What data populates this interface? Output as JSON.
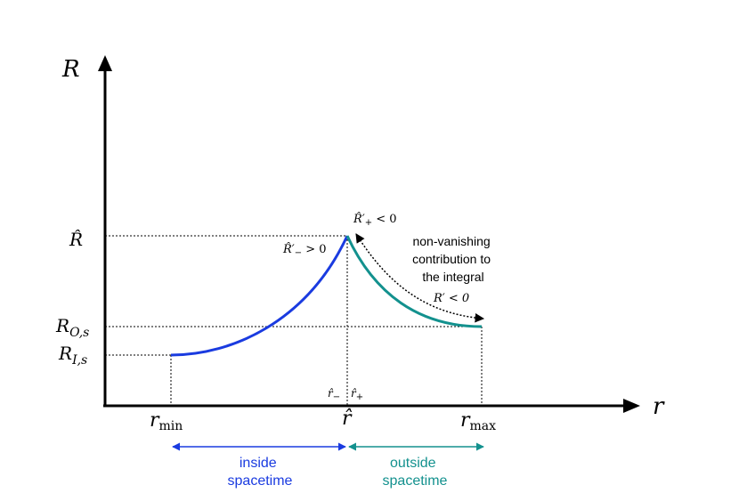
{
  "colors": {
    "inside": "#1a3be0",
    "outside": "#13918e",
    "axis": "#000000"
  },
  "axes": {
    "y_label": "R",
    "x_label": "r"
  },
  "y_ticks": {
    "R_hat": "R̂",
    "R_O_main": "R",
    "R_O_sub": "O,s",
    "R_I_main": "R",
    "R_I_sub": "I,s"
  },
  "x_ticks": {
    "r_min_main": "r",
    "r_min_sub": "min",
    "r_hat": "r̂",
    "r_max_main": "r",
    "r_max_sub": "max"
  },
  "annotations": {
    "R_minus_deriv": "R̂′",
    "R_minus_sub": "−",
    "R_minus_cond": " > 0",
    "R_plus_deriv": "R̂′",
    "R_plus_sub": "+",
    "R_plus_cond": " < 0",
    "r_minus": "r̂",
    "r_minus_sub": "−",
    "r_plus": "r̂",
    "r_plus_sub": "+",
    "R_prime": "R′ < 0",
    "contribution_lines": [
      "non-vanishing",
      "contribution to",
      "the integral"
    ]
  },
  "regions": {
    "inside_lines": [
      "inside",
      "spacetime"
    ],
    "outside_lines": [
      "outside",
      "spacetime"
    ]
  }
}
